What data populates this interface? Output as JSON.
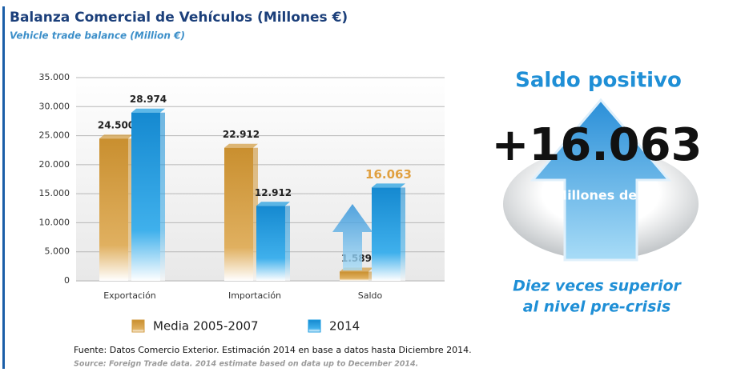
{
  "chart_data": {
    "type": "bar",
    "title": "Balanza Comercial de Vehículos (Millones €)",
    "subtitle": "Vehicle trade balance (Million €)",
    "categories": [
      "Exportación",
      "Importación",
      "Saldo"
    ],
    "series": [
      {
        "name": "Media 2005-2007",
        "color": "#d19a3c",
        "values": [
          24500,
          22912,
          1589
        ],
        "value_labels": [
          "24.500",
          "22.912",
          "1.589"
        ]
      },
      {
        "name": "2014",
        "color": "#1a9be0",
        "values": [
          28974,
          12912,
          16063
        ],
        "value_labels": [
          "28.974",
          "12.912",
          "16.063"
        ]
      }
    ],
    "ylim": [
      0,
      35000
    ],
    "yticks": [
      0,
      {
        "value": 5000,
        "label": "5.000"
      },
      {
        "value": 10000,
        "label": "10.000"
      },
      {
        "value": 15000,
        "label": "15.000"
      },
      {
        "value": 20000,
        "label": "20.000"
      },
      {
        "value": 25000,
        "label": "25.000"
      },
      {
        "value": 30000,
        "label": "30.000"
      },
      {
        "value": 35000,
        "label": "35.000"
      }
    ],
    "grid": true,
    "source": "Fuente: Datos Comercio Exterior. Estimación 2014 en base a datos hasta Diciembre 2014.",
    "source_en": "Source: Foreign Trade data. 2014 estimate based on data up to December 2014."
  },
  "highlight": {
    "heading": "Saldo positivo",
    "value": "+16.063",
    "unit": "Millones de €",
    "line1": "Diez veces superior",
    "line2": "al nivel pre-crisis"
  }
}
